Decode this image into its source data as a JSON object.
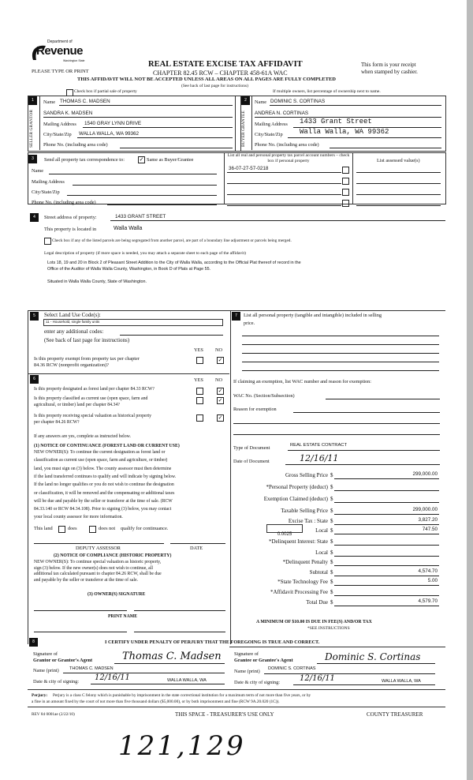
{
  "header": {
    "logo_top": "Department of",
    "logo_main": "Revenue",
    "logo_sub": "Washington State",
    "please": "PLEASE TYPE OR PRINT",
    "title": "REAL ESTATE EXCISE TAX AFFIDAVIT",
    "subtitle": "CHAPTER 82.45 RCW – CHAPTER 458-61A WAC",
    "receipt1": "This form is your receipt",
    "receipt2": "when stamped by cashier.",
    "warning": "THIS AFFIDAVIT WILL NOT BE ACCEPTED UNLESS ALL AREAS ON ALL PAGES ARE FULLY COMPLETED",
    "see_back": "(See back of last page for instructions)",
    "partial_sale": "Check box if partial sale of property",
    "partial_sale_checked": false,
    "multiple_owners": "If multiple owners, list percentage of ownership next to name."
  },
  "seller": {
    "num": "1",
    "side_label": "SELLER GRANTOR",
    "name_label": "Name",
    "name1": "THOMAS C. MADSEN",
    "name2": "SANDRA K. MADSEN",
    "mail_label": "Mailing Address",
    "mail": "1540 GRAY LYNN DRIVE",
    "city_label": "City/State/Zip",
    "city": "WALLA WALLA, WA  99362",
    "phone_label": "Phone No. (including area code)"
  },
  "buyer": {
    "num": "2",
    "side_label": "BUYER GRANTEE",
    "name_label": "Name",
    "name1": "DOMINIC S. CORTINAS",
    "name2": "ANDREA N. CORTINAS",
    "mail_label": "Mailing Address",
    "mail": "1433 Grant Street",
    "city_label": "City/State/Zip",
    "city": "Walla Walla, WA  99362",
    "phone_label": "Phone No. (including area code)"
  },
  "section3": {
    "num": "3",
    "send_label": "Send all property tax correspondence to:",
    "same_label": "Same as Buyer/Grantee",
    "same_checked": true,
    "name_label": "Name",
    "mail_label": "Mailing Address",
    "city_label": "City/State/Zip",
    "phone_label": "Phone No. (including area code)",
    "parcel_header": "List all real and personal property tax parcel account numbers – check box if personal property",
    "assessed_header": "List assessed value(s)",
    "parcels": [
      "36-07-27-57-0218",
      "",
      "",
      ""
    ]
  },
  "section4": {
    "num": "4",
    "street_label": "Street address of property:",
    "street": "1433 GRANT STREET",
    "located_label": "This property is located in",
    "located": "Walla Walla",
    "segregated": "Check box if any of the listed parcels are being segregated from another parcel, are part of a boundary line adjustment or parcels being merged.",
    "legal_label": "Legal description of property (if more space is needed, you may attach a separate sheet to each page of the affidavit)",
    "legal1": "Lots 18, 19 and 20 in Block 2 of Pleasant Street Addition to the City of Walla Walla, according to the Official Plat thereof of record in the",
    "legal2": "Office of the Auditor of Walla Walla County, Washington, in Book D of Plats at Page 55.",
    "legal3": "Situated in Walla Walla County, State of Washington."
  },
  "section5": {
    "num": "5",
    "select_label": "Select Land Use Code(s):",
    "land_use": "11 - Household, single family units",
    "additional": "enter any additional codes:",
    "see_back": "(See back of last page for instructions)",
    "yes": "YES",
    "no": "NO",
    "exempt_q1": "Is this property exempt from property tax per chapter",
    "exempt_q2": "84.36 RCW (nonprofit organization)?",
    "exempt_answer": "NO"
  },
  "section6": {
    "num": "6",
    "yes": "YES",
    "no": "NO",
    "questions": [
      {
        "l1": "Is this property designated as forest land per chapter 84.33 RCW?",
        "l2": "",
        "answer": "NO"
      },
      {
        "l1": "Is this property classified as current use (open space, farm and",
        "l2": "agricultural, or timber) land per chapter 84.34?",
        "answer": "NO"
      },
      {
        "l1": "Is this property receiving special valuation as historical property",
        "l2": "per chapter 84.26 RCW?",
        "answer": "NO"
      }
    ],
    "if_yes": "If any answers are yes, complete as instructed below.",
    "notice1_title": "(1) NOTICE OF CONTINUANCE  (FOREST LAND OR CURRENT USE)",
    "notice1_lines": [
      "NEW OWNER(S): To continue the current designation as forest land or",
      "classification as current use (open space, farm and agriculture, or timber)",
      "land, you must sign on (3) below. The county assessor must then determine",
      "if the land transferred continues to qualify and will indicate by signing below.",
      "If the land no longer qualifies or you do not wish to continue the designation",
      "or classification, it will be removed and the compensating or additional taxes",
      "will be due and payable by the seller or transferor at the time of sale. (RCW",
      "84.33.140 or RCW 84.34.108). Prior to signing (3) below, you may contact",
      "your local county assessor for more information."
    ],
    "this_land": "This land",
    "does": "does",
    "does_not": "does not",
    "qualify": "qualify for continuance.",
    "deputy": "DEPUTY ASSESSOR",
    "date": "DATE",
    "notice2_title": "(2) NOTICE OF COMPLIANCE (HISTORIC PROPERTY)",
    "notice2_lines": [
      "NEW OWNER(S): To continue special valuation as historic property,",
      "sign (3) below. If the new owner(s) does not wish to continue, all",
      "additional tax calculated pursuant to chapter 84.26 RCW, shall be due",
      "and payable by the seller or transferor at the time of sale."
    ],
    "owner_sig": "(3)  OWNER(S) SIGNATURE",
    "print_name": "PRINT NAME"
  },
  "section7": {
    "num": "7",
    "list_label1": "List all  personal property (tangible and intangible) included in selling",
    "list_label2": "price.",
    "exemption_label": "If claiming an exemption, list WAC number and reason for exemption:",
    "wac_label": "WAC No. (Section/Subsection)",
    "reason_label": "Reason for exemption",
    "doc_type_label": "Type of Document",
    "doc_type": "REAL ESTATE CONTRACT",
    "doc_date_label": "Date of Document",
    "doc_date": "12/16/11",
    "local_rate": "0.0025",
    "rows": [
      {
        "label": "Gross Selling Price",
        "value": "299,000.00"
      },
      {
        "label": "*Personal Property (deduct)",
        "value": ""
      },
      {
        "label": "Exemption Claimed (deduct)",
        "value": ""
      },
      {
        "label": "Taxable Selling Price",
        "value": "299,000.00"
      },
      {
        "label": "Excise Tax : State",
        "value": "3,827.20"
      },
      {
        "label": "Local",
        "value": "747.50"
      },
      {
        "label": "*Delinquent Interest: State",
        "value": ""
      },
      {
        "label": "Local",
        "value": ""
      },
      {
        "label": "*Delinquent Penalty",
        "value": ""
      },
      {
        "label": "Subtotal",
        "value": "4,574.70"
      },
      {
        "label": "*State Technology Fee",
        "value": "5.00"
      },
      {
        "label": "*Affidavit Processing Fee",
        "value": ""
      },
      {
        "label": "Total Due",
        "value": "4,579.70"
      }
    ],
    "currency": "$",
    "minimum": "A MINIMUM OF $10.00 IS DUE IN FEE(S) AND/OR TAX",
    "see_instructions": "*SEE INSTRUCTIONS"
  },
  "section8": {
    "num": "8",
    "certify": "I CERTIFY UNDER PENALTY OF PERJURY THAT THE FOREGOING IS TRUE AND CORRECT.",
    "grantor_sig1": "Signature of",
    "grantor_sig2": "Grantor or Grantor's Agent",
    "grantor_signature": "Thomas C. Madsen",
    "grantee_sig1": "Signature of",
    "grantee_sig2": "Grantee or Grantee's Agent",
    "grantee_signature": "Dominic S. Cortinas",
    "name_print_label": "Name (print)",
    "grantor_name": "THOMAS C. MADSEN",
    "grantee_name": "DOMINIC S. CORTINAS",
    "date_city_label": "Date & city of signing:",
    "grantor_date": "12/16/11",
    "grantor_city": "WALLA WALLA, WA",
    "grantee_date": "12/16/11",
    "grantee_city": "WALLA WALLA, WA"
  },
  "footer": {
    "perjury_bold": "Perjury:",
    "perjury1": "Perjury is a class C felony which is punishable by imprisonment in the state correctional institution for a maximum term of not more than five years, or by",
    "perjury2": "a fine in an amount fixed by the court of not more than five thousand dollars ($5,000.00), or by both imprisonment and fine (RCW 9A.20.020 (1C)).",
    "rev": "REV 84 0001ae (2/22/10)",
    "treasurer_space": "THIS SPACE - TREASURER'S USE ONLY",
    "county_treasurer": "COUNTY TREASURER",
    "handwritten": "121,129"
  }
}
